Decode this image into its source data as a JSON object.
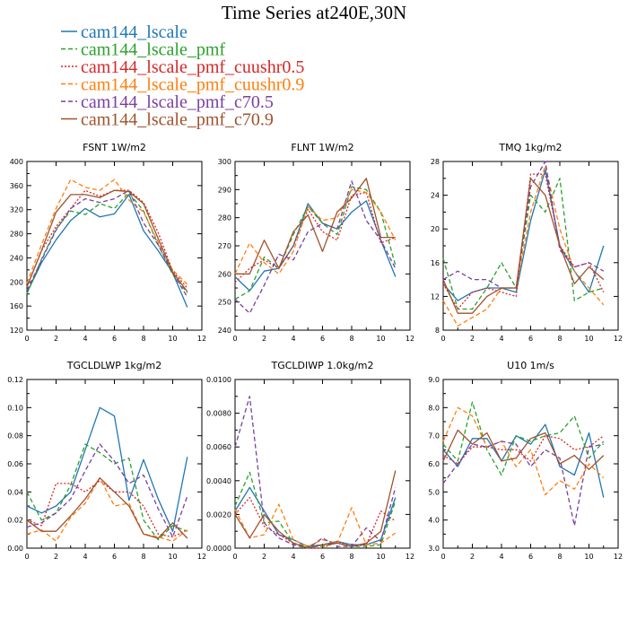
{
  "figure": {
    "title": "Time Series at240E,30N"
  },
  "colors": [
    "#1f77b4",
    "#2ca02c",
    "#d62728",
    "#ff7f0e",
    "#7b3fa0",
    "#a0522d"
  ],
  "dash": [
    "solid",
    "dashed",
    "dotted",
    "dashed",
    "dashed",
    "solid"
  ],
  "series_names": [
    "cam144_lscale",
    "cam144_lscale_pmf",
    "cam144_lscale_pmf_cuushr0.5",
    "cam144_lscale_pmf_cuushr0.9",
    "cam144_lscale_pmf_c70.5",
    "cam144_lscale_pmf_c70.9"
  ],
  "chart_data": [
    {
      "type": "line",
      "title": "FSNT  1W/m2",
      "x": [
        0,
        1,
        2,
        3,
        4,
        5,
        6,
        7,
        8,
        9,
        10,
        11
      ],
      "xlim": [
        0,
        12
      ],
      "xticks": [
        "0",
        "2",
        "4",
        "6",
        "8",
        "10",
        "12"
      ],
      "ylim": [
        120,
        400
      ],
      "yticks": [
        "120",
        "160",
        "200",
        "240",
        "280",
        "320",
        "360",
        "400"
      ],
      "series": [
        {
          "name": "cam144_lscale",
          "values": [
            182,
            232,
            270,
            302,
            322,
            308,
            313,
            345,
            285,
            252,
            215,
            158
          ]
        },
        {
          "name": "cam144_lscale_pmf",
          "values": [
            180,
            238,
            288,
            318,
            312,
            330,
            322,
            348,
            318,
            262,
            212,
            182
          ]
        },
        {
          "name": "cam144_lscale_pmf_cuushr0.5",
          "values": [
            192,
            252,
            292,
            322,
            352,
            342,
            352,
            352,
            332,
            282,
            218,
            190
          ]
        },
        {
          "name": "cam144_lscale_pmf_cuushr0.9",
          "values": [
            198,
            262,
            322,
            370,
            357,
            352,
            370,
            336,
            316,
            266,
            220,
            196
          ]
        },
        {
          "name": "cam144_lscale_pmf_c70.5",
          "values": [
            186,
            236,
            286,
            322,
            338,
            332,
            338,
            352,
            298,
            262,
            215,
            175
          ]
        },
        {
          "name": "cam144_lscale_pmf_c70.9",
          "values": [
            192,
            252,
            316,
            345,
            345,
            340,
            352,
            350,
            330,
            272,
            216,
            184
          ]
        }
      ]
    },
    {
      "type": "line",
      "title": "FLNT  1W/m2",
      "x": [
        0,
        1,
        2,
        3,
        4,
        5,
        6,
        7,
        8,
        9,
        10,
        11
      ],
      "xlim": [
        0,
        12
      ],
      "xticks": [
        "0",
        "2",
        "4",
        "6",
        "8",
        "10",
        "12"
      ],
      "ylim": [
        240,
        300
      ],
      "yticks": [
        "240",
        "250",
        "260",
        "270",
        "280",
        "290",
        "300"
      ],
      "series": [
        {
          "name": "cam144_lscale",
          "values": [
            259,
            254,
            261,
            262,
            270,
            285,
            278,
            276,
            282,
            286,
            272,
            259
          ]
        },
        {
          "name": "cam144_lscale_pmf",
          "values": [
            251,
            254,
            266,
            262,
            274,
            284,
            278,
            274,
            291,
            290,
            282,
            263
          ]
        },
        {
          "name": "cam144_lscale_pmf_cuushr0.5",
          "values": [
            257,
            262,
            265,
            262,
            270,
            283,
            275,
            272,
            288,
            289,
            271,
            273
          ]
        },
        {
          "name": "cam144_lscale_pmf_cuushr0.9",
          "values": [
            260,
            271,
            264,
            260,
            268,
            284,
            279,
            280,
            290,
            289,
            282,
            272
          ]
        },
        {
          "name": "cam144_lscale_pmf_c70.5",
          "values": [
            251,
            246,
            256,
            267,
            265,
            275,
            278,
            276,
            293,
            279,
            272,
            262
          ]
        },
        {
          "name": "cam144_lscale_pmf_c70.9",
          "values": [
            260,
            260,
            272,
            262,
            275,
            281,
            268,
            282,
            287,
            294,
            273,
            273
          ]
        }
      ]
    },
    {
      "type": "line",
      "title": "TMQ  1kg/m2",
      "x": [
        0,
        1,
        2,
        3,
        4,
        5,
        6,
        7,
        8,
        9,
        10,
        11
      ],
      "xlim": [
        0,
        12
      ],
      "xticks": [
        "0",
        "2",
        "4",
        "6",
        "8",
        "10",
        "12"
      ],
      "ylim": [
        8,
        28
      ],
      "yticks": [
        "8",
        "12",
        "16",
        "20",
        "24",
        "28"
      ],
      "series": [
        {
          "name": "cam144_lscale",
          "values": [
            13.5,
            11.5,
            12.5,
            13,
            13,
            12.5,
            21,
            27,
            18,
            15,
            12.5,
            18
          ]
        },
        {
          "name": "cam144_lscale_pmf",
          "values": [
            16.5,
            10.5,
            10.5,
            13,
            16,
            13,
            24,
            22,
            26,
            11.5,
            12.5,
            13
          ]
        },
        {
          "name": "cam144_lscale_pmf_cuushr0.5",
          "values": [
            13.5,
            10.5,
            12.5,
            13,
            12.5,
            12,
            26.5,
            26.5,
            18,
            15.5,
            16,
            12.5
          ]
        },
        {
          "name": "cam144_lscale_pmf_cuushr0.9",
          "values": [
            11.5,
            8.5,
            9.5,
            10.5,
            13,
            13,
            22,
            27.5,
            20,
            15,
            13,
            11
          ]
        },
        {
          "name": "cam144_lscale_pmf_c70.5",
          "values": [
            14,
            15,
            14,
            14,
            13,
            13,
            25,
            28,
            17.5,
            15.5,
            16,
            15
          ]
        },
        {
          "name": "cam144_lscale_pmf_c70.9",
          "values": [
            14,
            10,
            10,
            12,
            13,
            13,
            26,
            24,
            18,
            13.5,
            15.5,
            14
          ]
        }
      ]
    },
    {
      "type": "line",
      "title": "TGCLDLWP  1kg/m2",
      "x": [
        0,
        1,
        2,
        3,
        4,
        5,
        6,
        7,
        8,
        9,
        10,
        11
      ],
      "xlim": [
        0,
        12
      ],
      "xticks": [
        "0",
        "2",
        "4",
        "6",
        "8",
        "10",
        "12"
      ],
      "ylim": [
        0,
        0.12
      ],
      "yticks": [
        "0.00",
        "0.02",
        "0.04",
        "0.06",
        "0.08",
        "0.10",
        "0.12"
      ],
      "series": [
        {
          "name": "cam144_lscale",
          "values": [
            0.03,
            0.025,
            0.03,
            0.04,
            0.07,
            0.1,
            0.094,
            0.034,
            0.063,
            0.035,
            0.012,
            0.065
          ]
        },
        {
          "name": "cam144_lscale_pmf",
          "values": [
            0.04,
            0.02,
            0.025,
            0.045,
            0.074,
            0.068,
            0.06,
            0.064,
            0.02,
            0.006,
            0.016,
            0.012
          ]
        },
        {
          "name": "cam144_lscale_pmf_cuushr0.5",
          "values": [
            0.02,
            0.016,
            0.046,
            0.046,
            0.04,
            0.048,
            0.04,
            0.04,
            0.03,
            0.01,
            0.008,
            0.013
          ]
        },
        {
          "name": "cam144_lscale_pmf_cuushr0.9",
          "values": [
            0.01,
            0.013,
            0.005,
            0.022,
            0.032,
            0.05,
            0.03,
            0.032,
            0.01,
            0.008,
            0.005,
            0.013
          ]
        },
        {
          "name": "cam144_lscale_pmf_c70.5",
          "values": [
            0.015,
            0.018,
            0.025,
            0.035,
            0.055,
            0.074,
            0.062,
            0.046,
            0.052,
            0.028,
            0.008,
            0.037
          ]
        },
        {
          "name": "cam144_lscale_pmf_c70.9",
          "values": [
            0.02,
            0.012,
            0.012,
            0.023,
            0.035,
            0.05,
            0.04,
            0.03,
            0.01,
            0.007,
            0.018,
            0.007
          ]
        }
      ]
    },
    {
      "type": "line",
      "title": "TGCLDIWP  1.0kg/m2",
      "x": [
        0,
        1,
        2,
        3,
        4,
        5,
        6,
        7,
        8,
        9,
        10,
        11
      ],
      "xlim": [
        0,
        12
      ],
      "xticks": [
        "0",
        "2",
        "4",
        "6",
        "8",
        "10",
        "12"
      ],
      "ylim": [
        0,
        0.01
      ],
      "yticks": [
        "0.0000",
        "0.0020",
        "0.0040",
        "0.0060",
        "0.0080",
        "0.0100"
      ],
      "series": [
        {
          "name": "cam144_lscale",
          "values": [
            0.0022,
            0.0036,
            0.0022,
            0.0008,
            0.0005,
            0.0001,
            0.0002,
            0.0004,
            0.0002,
            0.0002,
            0.0005,
            0.003
          ]
        },
        {
          "name": "cam144_lscale_pmf",
          "values": [
            0.0025,
            0.0045,
            0.0015,
            0.0016,
            0.0003,
            0.0001,
            0.0001,
            0.0003,
            0.0001,
            0.0001,
            0.0002,
            0.0028
          ]
        },
        {
          "name": "cam144_lscale_pmf_cuushr0.5",
          "values": [
            0.002,
            0.003,
            0.0013,
            0.0008,
            0.0003,
            0,
            0,
            0.0004,
            0.0001,
            0.0002,
            0.0022,
            0.0016
          ]
        },
        {
          "name": "cam144_lscale_pmf_cuushr0.9",
          "values": [
            0.0023,
            0.0006,
            0.0008,
            0.0026,
            0.0005,
            0.0001,
            0.0005,
            0.0003,
            0.0024,
            0.0002,
            0.0003,
            0.0009
          ]
        },
        {
          "name": "cam144_lscale_pmf_c70.5",
          "values": [
            0.006,
            0.009,
            0.0015,
            0.0006,
            0.0002,
            0,
            0.0006,
            0.0001,
            0.0001,
            0.0012,
            0.0004,
            0.0036
          ]
        },
        {
          "name": "cam144_lscale_pmf_c70.9",
          "values": [
            0.002,
            0.0006,
            0.002,
            0.001,
            0.0003,
            0,
            0.0002,
            0.0003,
            0.0001,
            0.0003,
            0.001,
            0.0046
          ]
        }
      ]
    },
    {
      "type": "line",
      "title": "U10  1m/s",
      "x": [
        0,
        1,
        2,
        3,
        4,
        5,
        6,
        7,
        8,
        9,
        10,
        11
      ],
      "xlim": [
        0,
        12
      ],
      "xticks": [
        "0",
        "2",
        "4",
        "6",
        "8",
        "10",
        "12"
      ],
      "ylim": [
        3,
        9
      ],
      "yticks": [
        "3.0",
        "4.0",
        "5.0",
        "6.0",
        "7.0",
        "8.0",
        "9.0"
      ],
      "series": [
        {
          "name": "cam144_lscale",
          "values": [
            6.5,
            5.9,
            6.9,
            6.9,
            6.1,
            7.0,
            6.7,
            7.4,
            5.9,
            5.6,
            7.1,
            4.8
          ]
        },
        {
          "name": "cam144_lscale_pmf",
          "values": [
            6.7,
            6.1,
            8.2,
            6.5,
            5.6,
            7.0,
            6.8,
            7.0,
            7.1,
            7.7,
            6.2,
            6.8
          ]
        },
        {
          "name": "cam144_lscale_pmf_cuushr0.5",
          "values": [
            6.3,
            6.0,
            6.6,
            6.6,
            6.5,
            6.5,
            6.1,
            7.0,
            6.9,
            6.5,
            6.6,
            7.0
          ]
        },
        {
          "name": "cam144_lscale_pmf_cuushr0.9",
          "values": [
            6.8,
            8.0,
            7.7,
            6.6,
            6.8,
            5.9,
            6.5,
            4.9,
            5.4,
            5.1,
            6.0,
            5.5
          ]
        },
        {
          "name": "cam144_lscale_pmf_c70.5",
          "values": [
            5.3,
            6.0,
            6.7,
            6.6,
            6.8,
            6.7,
            5.9,
            6.5,
            6.2,
            3.8,
            6.6,
            6.7
          ]
        },
        {
          "name": "cam144_lscale_pmf_c70.9",
          "values": [
            6.1,
            7.2,
            6.7,
            7.1,
            6.1,
            6.2,
            6.9,
            7.1,
            6.0,
            6.3,
            5.8,
            6.3
          ]
        }
      ]
    }
  ]
}
